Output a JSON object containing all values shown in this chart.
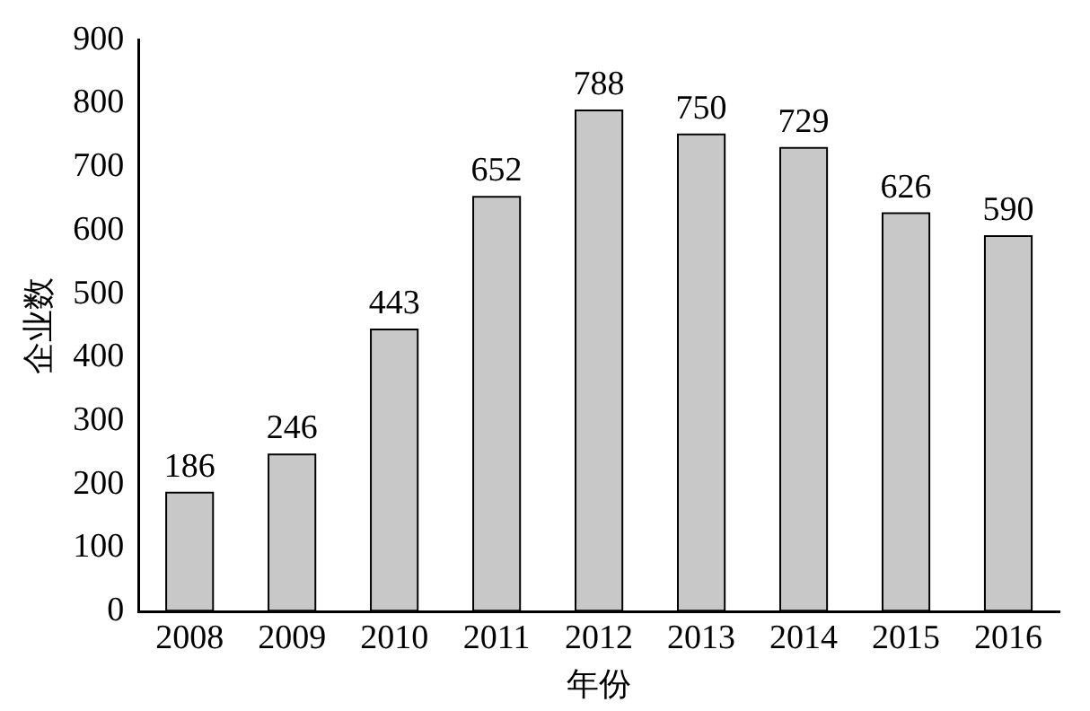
{
  "chart_data": {
    "type": "bar",
    "xlabel": "年份",
    "ylabel": "企业数",
    "categories": [
      "2008",
      "2009",
      "2010",
      "2011",
      "2012",
      "2013",
      "2014",
      "2015",
      "2016"
    ],
    "values": [
      186,
      246,
      443,
      652,
      788,
      750,
      729,
      626,
      590
    ],
    "color": "#c8c8c8",
    "ylim": [
      0,
      900
    ],
    "yticks": [
      0,
      100,
      200,
      300,
      400,
      500,
      600,
      700,
      800,
      900
    ],
    "grid": false,
    "data_labels": true
  }
}
